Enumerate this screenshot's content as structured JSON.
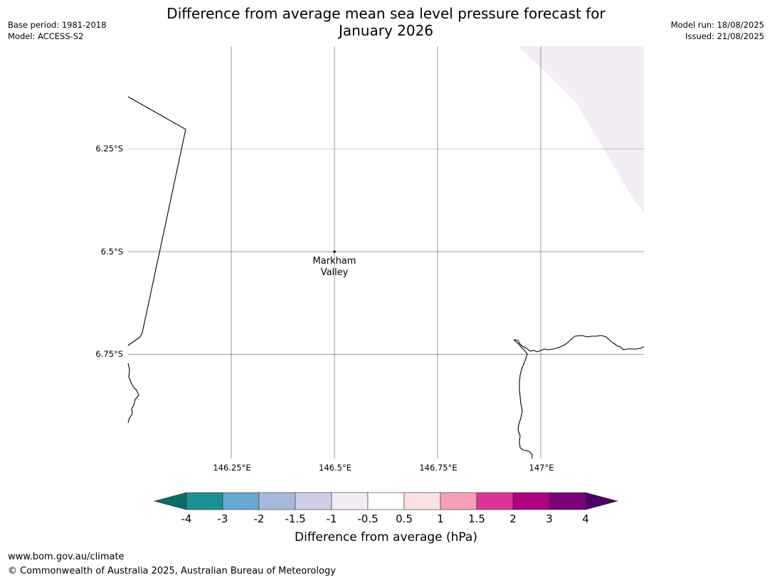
{
  "title": {
    "line1": "Difference from average mean sea level pressure forecast for",
    "line2": "January 2026"
  },
  "meta_left": {
    "base_period": "Base period: 1981-2018",
    "model": "Model: ACCESS-S2"
  },
  "meta_right": {
    "model_run": "Model run: 18/08/2025",
    "issued": "Issued: 21/08/2025"
  },
  "map": {
    "lat_labels": [
      "6.25°S",
      "6.5°S",
      "6.75°S"
    ],
    "lon_labels": [
      "146.25°E",
      "146.5°E",
      "146.75°E",
      "147°E"
    ],
    "place": {
      "name_line1": "Markham",
      "name_line2": "Valley",
      "lat": -6.5,
      "lon": 146.5
    },
    "anomaly_fill_color": "#f2edf4"
  },
  "colorbar": {
    "label": "Difference from average (hPa)",
    "ticks": [
      "-4",
      "-3",
      "-2",
      "-1.5",
      "-1",
      "-0.5",
      "0.5",
      "1",
      "1.5",
      "2",
      "3",
      "4"
    ],
    "colors": [
      "#1a9097",
      "#66a8d0",
      "#a7b9da",
      "#d0cee6",
      "#f2edf4",
      "#ffffff",
      "#fde0e0",
      "#f8a0b8",
      "#dd3497",
      "#ae017e",
      "#7a0177"
    ],
    "extend_low_color": "#0b6e64",
    "extend_high_color": "#4d0066"
  },
  "footer": {
    "url": "www.bom.gov.au/climate",
    "copyright": "© Commonwealth of Australia 2025, Australian Bureau of Meteorology"
  }
}
